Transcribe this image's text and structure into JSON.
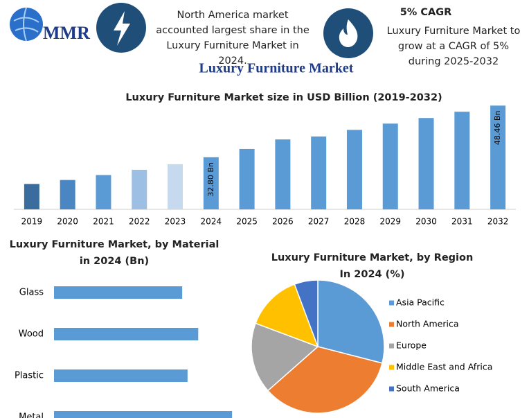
{
  "header": {
    "logo": "MMR",
    "fact_1": "North America market accounted largest share in the Luxury Furniture Market in 2024.",
    "fact_2_title": "5% CAGR",
    "fact_2": "Luxury Furniture Market to grow at a CAGR of 5% during 2025-2032"
  },
  "title": "Luxury Furniture Market",
  "chart_data": [
    {
      "type": "bar",
      "title": "Luxury Furniture Market size in USD Billion (2019-2032)",
      "categories": [
        "2019",
        "2020",
        "2021",
        "2022",
        "2023",
        "2024",
        "2025",
        "2026",
        "2027",
        "2028",
        "2029",
        "2030",
        "2031",
        "2032"
      ],
      "values": [
        24.7,
        25.9,
        27.4,
        29.0,
        30.7,
        32.8,
        35.3,
        38.2,
        39.1,
        41.1,
        43.0,
        44.7,
        46.6,
        48.46
      ],
      "value_labels": [
        null,
        null,
        null,
        null,
        null,
        "32.80 Bn",
        null,
        null,
        null,
        null,
        null,
        null,
        null,
        "48.46 Bn"
      ],
      "colors": [
        "#3a6d9e",
        "#4a87c2",
        "#5b9bd5",
        "#9dbfe4",
        "#c6d9ef",
        "#5b9bd5",
        "#5b9bd5",
        "#5b9bd5",
        "#5b9bd5",
        "#5b9bd5",
        "#5b9bd5",
        "#5b9bd5",
        "#5b9bd5",
        "#5b9bd5"
      ],
      "ylim": [
        17,
        50
      ]
    },
    {
      "type": "barh",
      "title": "Luxury Furniture Market, by Material in 2024 (Bn)",
      "categories": [
        "Glass",
        "Wood",
        "Plastic",
        "Metal"
      ],
      "values": [
        7.2,
        8.1,
        7.5,
        10.0
      ],
      "color": "#5b9bd5",
      "xlim": [
        0,
        10.5
      ]
    },
    {
      "type": "pie",
      "title": "Luxury Furniture Market, by Region In 2024 (%)",
      "categories": [
        "Asia Pacific",
        "North America",
        "Europe",
        "Middle East and Africa",
        "South America"
      ],
      "values": [
        29,
        34.5,
        17.2,
        13.6,
        5.7
      ],
      "colors": [
        "#5b9bd5",
        "#ed7d31",
        "#a5a5a5",
        "#ffc000",
        "#4472c4"
      ]
    }
  ]
}
